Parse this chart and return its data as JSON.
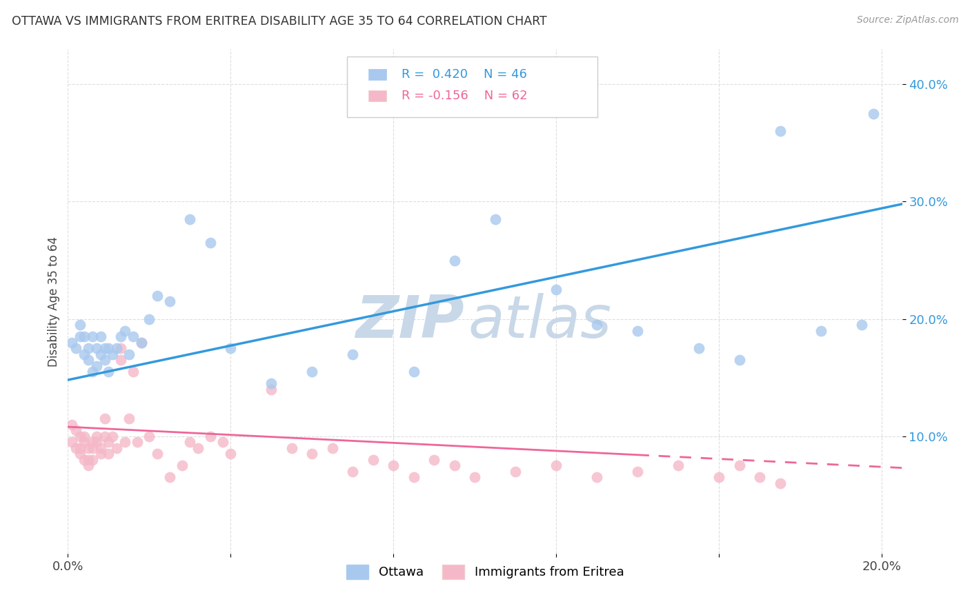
{
  "title": "OTTAWA VS IMMIGRANTS FROM ERITREA DISABILITY AGE 35 TO 64 CORRELATION CHART",
  "source": "Source: ZipAtlas.com",
  "ylabel": "Disability Age 35 to 64",
  "blue_color": "#A8C8EE",
  "pink_color": "#F5B8C8",
  "blue_line_color": "#3399DD",
  "pink_line_color": "#EE6699",
  "watermark_zip_color": "#C8D8E8",
  "watermark_atlas_color": "#C8D8E8",
  "background_color": "#FFFFFF",
  "grid_color": "#DDDDDD",
  "xlim": [
    0.0,
    0.205
  ],
  "ylim": [
    0.0,
    0.43
  ],
  "xticks": [
    0.0,
    0.04,
    0.08,
    0.12,
    0.16,
    0.2
  ],
  "xtick_show": [
    0.0,
    0.2
  ],
  "yticks": [
    0.1,
    0.2,
    0.3,
    0.4
  ],
  "blue_trend": [
    0.148,
    0.298
  ],
  "pink_trend_solid_end": 0.14,
  "pink_trend": [
    0.108,
    0.073
  ],
  "ottawa_x": [
    0.001,
    0.002,
    0.003,
    0.003,
    0.004,
    0.004,
    0.005,
    0.005,
    0.006,
    0.006,
    0.007,
    0.007,
    0.008,
    0.008,
    0.009,
    0.009,
    0.01,
    0.01,
    0.011,
    0.012,
    0.013,
    0.014,
    0.015,
    0.016,
    0.018,
    0.02,
    0.022,
    0.025,
    0.03,
    0.035,
    0.04,
    0.05,
    0.06,
    0.07,
    0.085,
    0.095,
    0.105,
    0.12,
    0.13,
    0.14,
    0.155,
    0.165,
    0.175,
    0.185,
    0.195,
    0.198
  ],
  "ottawa_y": [
    0.18,
    0.175,
    0.185,
    0.195,
    0.17,
    0.185,
    0.165,
    0.175,
    0.155,
    0.185,
    0.16,
    0.175,
    0.185,
    0.17,
    0.165,
    0.175,
    0.155,
    0.175,
    0.17,
    0.175,
    0.185,
    0.19,
    0.17,
    0.185,
    0.18,
    0.2,
    0.22,
    0.215,
    0.285,
    0.265,
    0.175,
    0.145,
    0.155,
    0.17,
    0.155,
    0.25,
    0.285,
    0.225,
    0.195,
    0.19,
    0.175,
    0.165,
    0.36,
    0.19,
    0.195,
    0.375
  ],
  "eritrea_x": [
    0.001,
    0.001,
    0.002,
    0.002,
    0.003,
    0.003,
    0.003,
    0.004,
    0.004,
    0.004,
    0.005,
    0.005,
    0.005,
    0.006,
    0.006,
    0.006,
    0.007,
    0.007,
    0.008,
    0.008,
    0.009,
    0.009,
    0.01,
    0.01,
    0.011,
    0.012,
    0.013,
    0.013,
    0.014,
    0.015,
    0.016,
    0.017,
    0.018,
    0.02,
    0.022,
    0.025,
    0.028,
    0.03,
    0.032,
    0.035,
    0.038,
    0.04,
    0.05,
    0.055,
    0.06,
    0.065,
    0.07,
    0.075,
    0.08,
    0.085,
    0.09,
    0.095,
    0.1,
    0.11,
    0.12,
    0.13,
    0.14,
    0.15,
    0.16,
    0.165,
    0.17,
    0.175
  ],
  "eritrea_y": [
    0.11,
    0.095,
    0.105,
    0.09,
    0.1,
    0.09,
    0.085,
    0.1,
    0.095,
    0.08,
    0.09,
    0.08,
    0.075,
    0.095,
    0.09,
    0.08,
    0.1,
    0.095,
    0.09,
    0.085,
    0.1,
    0.115,
    0.085,
    0.095,
    0.1,
    0.09,
    0.175,
    0.165,
    0.095,
    0.115,
    0.155,
    0.095,
    0.18,
    0.1,
    0.085,
    0.065,
    0.075,
    0.095,
    0.09,
    0.1,
    0.095,
    0.085,
    0.14,
    0.09,
    0.085,
    0.09,
    0.07,
    0.08,
    0.075,
    0.065,
    0.08,
    0.075,
    0.065,
    0.07,
    0.075,
    0.065,
    0.07,
    0.075,
    0.065,
    0.075,
    0.065,
    0.06
  ]
}
